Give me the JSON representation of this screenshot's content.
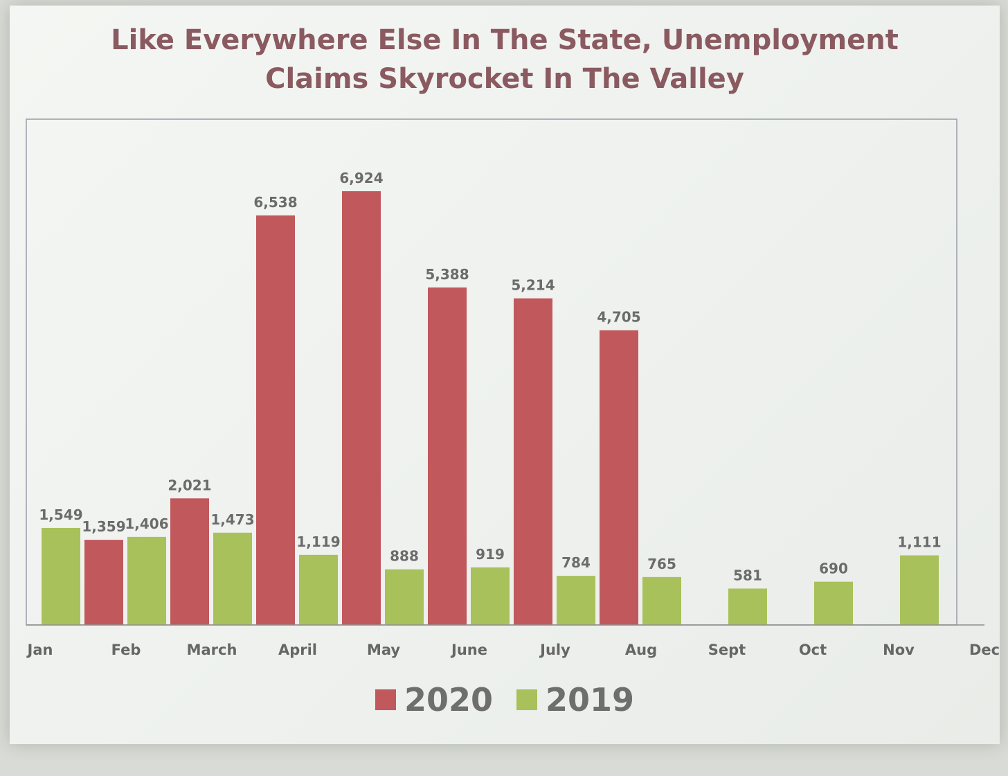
{
  "chart_data": {
    "type": "bar",
    "title_lines": [
      "Like Everywhere Else In The State, Unemployment",
      "Claims Skyrocket In The Valley"
    ],
    "xlabel": "",
    "ylabel": "",
    "ylim": [
      0,
      7200
    ],
    "grid": false,
    "legend_position": "bottom-center",
    "categories": [
      "Jan",
      "Feb",
      "March",
      "April",
      "May",
      "June",
      "July",
      "Aug",
      "Sept",
      "Oct",
      "Nov",
      "Dec"
    ],
    "series": [
      {
        "name": "2020",
        "color": "#c0585c",
        "values": [
          1359,
          2021,
          6538,
          6924,
          5388,
          5214,
          4705,
          null,
          null,
          null,
          null,
          null
        ],
        "labels": [
          "1,359",
          "2,021",
          "6,538",
          "6,924",
          "5,388",
          "5,214",
          "4,705",
          "",
          "",
          "",
          "",
          ""
        ]
      },
      {
        "name": "2019",
        "color": "#a9c15a",
        "values": [
          1549,
          1406,
          1473,
          1119,
          888,
          919,
          784,
          765,
          581,
          690,
          1111,
          null
        ],
        "labels": [
          "1,549",
          "1,406",
          "1,473",
          "1,119",
          "888",
          "919",
          "784",
          "765",
          "581",
          "690",
          "1,111",
          ""
        ]
      }
    ]
  }
}
